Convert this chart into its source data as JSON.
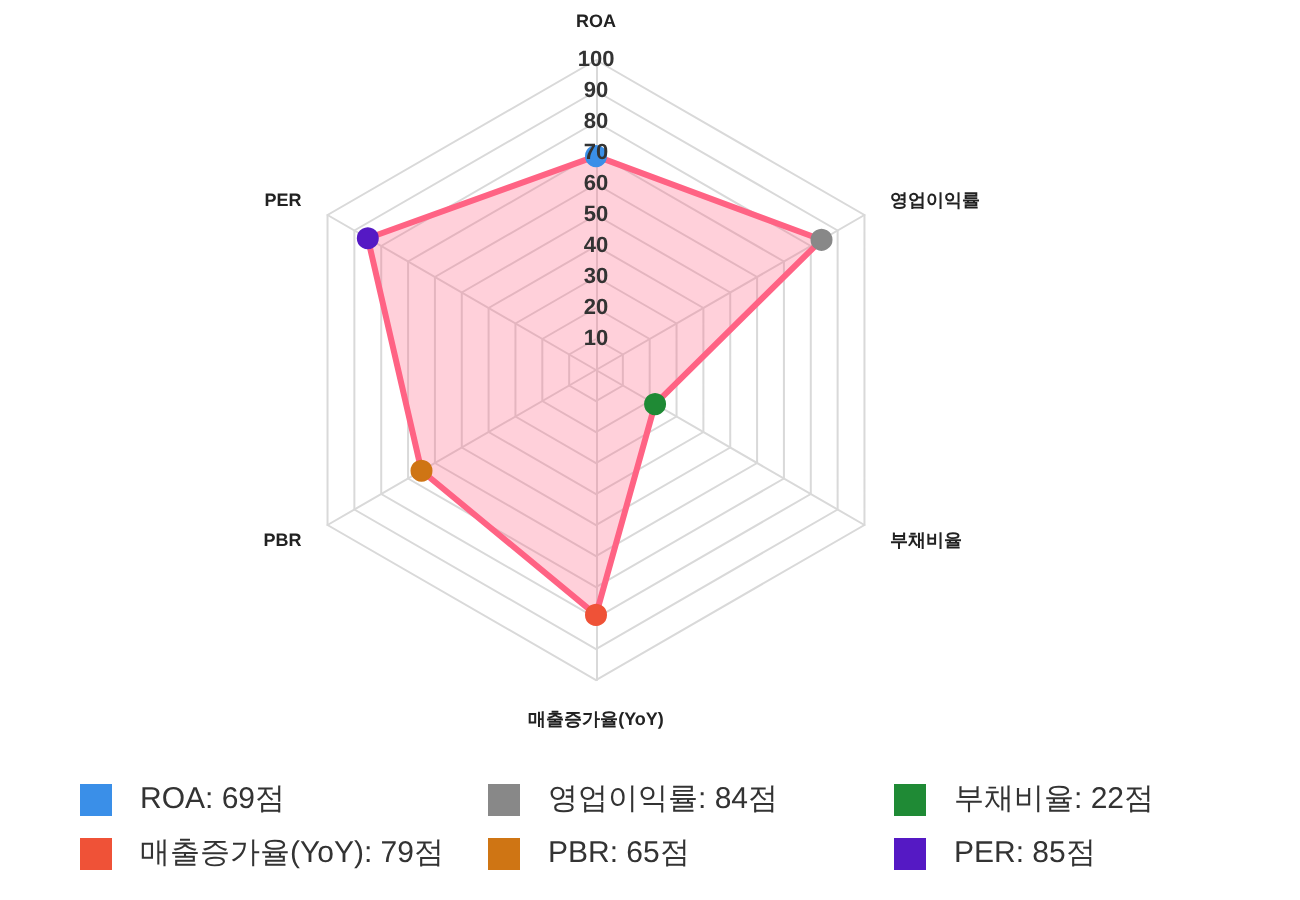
{
  "chart_data": {
    "type": "radar",
    "categories": [
      "ROA",
      "영업이익률",
      "부채비율",
      "매출증가율(YoY)",
      "PBR",
      "PER"
    ],
    "series": [
      {
        "color": "#ff6384",
        "values": [
          69,
          84,
          22,
          79,
          65,
          85
        ]
      }
    ],
    "colors": [
      "#3a8fe8",
      "#888888",
      "#1f8a35",
      "#ef5237",
      "#cf7514",
      "#5519c4"
    ],
    "value_labels": [
      "ROA: 69점",
      "영업이익률: 84점",
      "부채비율: 22점",
      "매출증가율(YoY): 79점",
      "PBR: 65점",
      "PER: 85점"
    ],
    "ylim": [
      0,
      100
    ],
    "yticks": [
      10,
      20,
      30,
      40,
      50,
      60,
      70,
      80,
      90,
      100
    ],
    "grid": true,
    "marker": "circle"
  }
}
